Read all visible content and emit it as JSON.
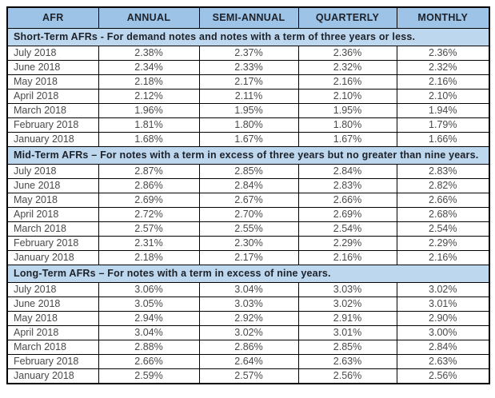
{
  "colors": {
    "header_bg": "#9DC3E6",
    "band_bg": "#BDD7EE",
    "border": "#000000",
    "header_text": "#1D2129",
    "data_text": "#4A4A4A"
  },
  "table": {
    "columns": [
      "AFR",
      "ANNUAL",
      "SEMI-ANNUAL",
      "QUARTERLY",
      "MONTHLY"
    ],
    "sections": [
      {
        "title": "Short-Term AFRs - For demand notes and notes with a term of three years or less.",
        "rows": [
          {
            "month": "July 2018",
            "values": [
              "2.38%",
              "2.37%",
              "2.36%",
              "2.36%"
            ]
          },
          {
            "month": "June 2018",
            "values": [
              "2.34%",
              "2.33%",
              "2.32%",
              "2.32%"
            ]
          },
          {
            "month": "May 2018",
            "values": [
              "2.18%",
              "2.17%",
              "2.16%",
              "2.16%"
            ]
          },
          {
            "month": "April 2018",
            "values": [
              "2.12%",
              "2.11%",
              "2.10%",
              "2.10%"
            ]
          },
          {
            "month": "March 2018",
            "values": [
              "1.96%",
              "1.95%",
              "1.95%",
              "1.94%"
            ]
          },
          {
            "month": "February 2018",
            "values": [
              "1.81%",
              "1.80%",
              "1.80%",
              "1.79%"
            ]
          },
          {
            "month": "January 2018",
            "values": [
              "1.68%",
              "1.67%",
              "1.67%",
              "1.66%"
            ]
          }
        ]
      },
      {
        "title": "Mid-Term AFRs – For notes with a term in excess of three years but no greater than nine years.",
        "rows": [
          {
            "month": "July 2018",
            "values": [
              "2.87%",
              "2.85%",
              "2.84%",
              "2.83%"
            ]
          },
          {
            "month": "June 2018",
            "values": [
              "2.86%",
              "2.84%",
              "2.83%",
              "2.82%"
            ]
          },
          {
            "month": "May 2018",
            "values": [
              "2.69%",
              "2.67%",
              "2.66%",
              "2.66%"
            ]
          },
          {
            "month": "April 2018",
            "values": [
              "2.72%",
              "2.70%",
              "2.69%",
              "2.68%"
            ]
          },
          {
            "month": "March 2018",
            "values": [
              "2.57%",
              "2.55%",
              "2.54%",
              "2.54%"
            ]
          },
          {
            "month": "February 2018",
            "values": [
              "2.31%",
              "2.30%",
              "2.29%",
              "2.29%"
            ]
          },
          {
            "month": "January 2018",
            "values": [
              "2.18%",
              "2.17%",
              "2.16%",
              "2.16%"
            ]
          }
        ]
      },
      {
        "title": "Long-Term AFRs – For notes with a term in excess of nine years.",
        "rows": [
          {
            "month": "July 2018",
            "values": [
              "3.06%",
              "3.04%",
              "3.03%",
              "3.02%"
            ]
          },
          {
            "month": "June 2018",
            "values": [
              "3.05%",
              "3.03%",
              "3.02%",
              "3.01%"
            ]
          },
          {
            "month": "May 2018",
            "values": [
              "2.94%",
              "2.92%",
              "2.91%",
              "2.90%"
            ]
          },
          {
            "month": "April 2018",
            "values": [
              "3.04%",
              "3.02%",
              "3.01%",
              "3.00%"
            ]
          },
          {
            "month": "March 2018",
            "values": [
              "2.88%",
              "2.86%",
              "2.85%",
              "2.84%"
            ]
          },
          {
            "month": "February 2018",
            "values": [
              "2.66%",
              "2.64%",
              "2.63%",
              "2.63%"
            ]
          },
          {
            "month": "January 2018",
            "values": [
              "2.59%",
              "2.57%",
              "2.56%",
              "2.56%"
            ]
          }
        ]
      }
    ]
  }
}
